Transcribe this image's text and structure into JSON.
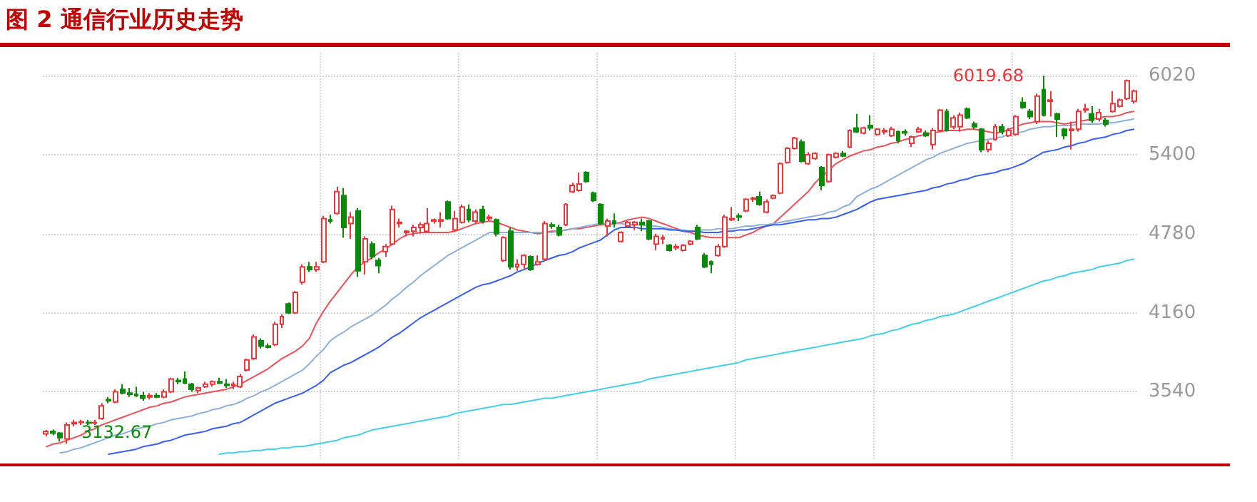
{
  "chart_data": {
    "type": "candlestick",
    "title": "图 2 通信行业历史走势",
    "categories": [
      null,
      null,
      null,
      null,
      null,
      null,
      null,
      null,
      null,
      null,
      null,
      null,
      null,
      null,
      null,
      null,
      null,
      null,
      null,
      null,
      null,
      null,
      null,
      null,
      null,
      null,
      null,
      null,
      null,
      null,
      null,
      null,
      null,
      null,
      null,
      null,
      null,
      null,
      null,
      null,
      null,
      null,
      null,
      null,
      null,
      null,
      null,
      null,
      null,
      null,
      null,
      null,
      null,
      null,
      null,
      null,
      null,
      null,
      null,
      null,
      null,
      null,
      null,
      null,
      null,
      null,
      null,
      null,
      null,
      null,
      null,
      null,
      null,
      null,
      null,
      null,
      null,
      null,
      null,
      null,
      null,
      null,
      null,
      null,
      null,
      null,
      null,
      null,
      null,
      null,
      null,
      null,
      null,
      null,
      null,
      null,
      null,
      null,
      null,
      null,
      null,
      null,
      null,
      null,
      null,
      null,
      null,
      null,
      null,
      null,
      null,
      null,
      null,
      null,
      null,
      null,
      null,
      null,
      null,
      null,
      null,
      null,
      null,
      null,
      null,
      null,
      null,
      null,
      null,
      null,
      null,
      null,
      null,
      null,
      null,
      null,
      null,
      null,
      null,
      null,
      null,
      null,
      null,
      null,
      null,
      null,
      null,
      null,
      null,
      null,
      null,
      null,
      null,
      null,
      null,
      null,
      null,
      null
    ],
    "ylim": [
      3000,
      6200
    ],
    "yticks": [
      3540,
      4160,
      4780,
      5400,
      6020
    ],
    "grid": true,
    "tick_labels": "y",
    "annotations": [
      "6019.68",
      "3132.67"
    ],
    "series": [
      {
        "type": "line",
        "color": "#e8525a",
        "values": [
          3110,
          3130,
          3140,
          3160,
          3180,
          3200,
          3230,
          3250,
          3280,
          3300,
          3320,
          3340,
          3360,
          3380,
          3400,
          3420,
          3430,
          3450,
          3460,
          3480,
          3500,
          3510,
          3520,
          3530,
          3540,
          3550,
          3560,
          3580,
          3600,
          3630,
          3660,
          3690,
          3720,
          3760,
          3800,
          3830,
          3860,
          3900,
          3960,
          4080,
          4170,
          4250,
          4320,
          4390,
          4460,
          4520,
          4560,
          4590,
          4630,
          4660,
          4700,
          4740,
          4770,
          4780,
          4790,
          4790,
          4790,
          4790,
          4790,
          4800,
          4820,
          4840,
          4860,
          4870,
          4880,
          4870,
          4850,
          4830,
          4810,
          4800,
          4790,
          4780,
          4790,
          4800,
          4800,
          4810,
          4820,
          4820,
          4830,
          4840,
          4850,
          4850,
          4860,
          4870,
          4890,
          4900,
          4910,
          4900,
          4880,
          4860,
          4840,
          4820,
          4800,
          4790,
          4770,
          4760,
          4750,
          4750,
          4750,
          4750,
          4750,
          4770,
          4790,
          4820,
          4840,
          4860,
          4910,
          4960,
          5010,
          5060,
          5110,
          5180,
          5230,
          5280,
          5330,
          5360,
          5390,
          5410,
          5430,
          5440,
          5460,
          5470,
          5490,
          5500,
          5520,
          5530,
          5550,
          5560,
          5570,
          5580,
          5590,
          5590,
          5590,
          5600,
          5600,
          5590,
          5580,
          5570,
          5580,
          5600,
          5620,
          5640,
          5650,
          5660,
          5660,
          5660,
          5650,
          5640,
          5650,
          5660,
          5670,
          5680,
          5690,
          5700,
          5700,
          5710,
          5730,
          5740
        ]
      },
      {
        "type": "line",
        "color": "#8fb0d6",
        "values": [
          null,
          null,
          3060,
          3070,
          3090,
          3100,
          3120,
          3140,
          3160,
          3180,
          3200,
          3210,
          3230,
          3250,
          3260,
          3270,
          3290,
          3300,
          3320,
          3330,
          3340,
          3350,
          3370,
          3380,
          3400,
          3410,
          3430,
          3440,
          3460,
          3490,
          3510,
          3540,
          3560,
          3590,
          3620,
          3650,
          3680,
          3710,
          3760,
          3820,
          3870,
          3940,
          3980,
          4010,
          4050,
          4080,
          4110,
          4140,
          4180,
          4220,
          4270,
          4310,
          4360,
          4400,
          4450,
          4490,
          4530,
          4570,
          4610,
          4640,
          4670,
          4700,
          4730,
          4760,
          4790,
          4790,
          4790,
          4790,
          4790,
          4790,
          4790,
          4790,
          4790,
          4790,
          4800,
          4810,
          4820,
          4830,
          4840,
          4850,
          4860,
          4860,
          4860,
          4860,
          4850,
          4850,
          4850,
          4840,
          4840,
          4830,
          4820,
          4810,
          4810,
          4800,
          4810,
          4810,
          4810,
          4820,
          4820,
          4820,
          4830,
          4840,
          4840,
          4850,
          4850,
          4860,
          4870,
          4880,
          4890,
          4900,
          4910,
          4920,
          4930,
          4950,
          4960,
          4990,
          5010,
          5070,
          5100,
          5130,
          5150,
          5180,
          5210,
          5240,
          5270,
          5300,
          5330,
          5360,
          5380,
          5410,
          5430,
          5450,
          5470,
          5490,
          5500,
          5510,
          5520,
          5530,
          5540,
          5560,
          5570,
          5580,
          5600,
          5610,
          5620,
          5620,
          5630,
          5630,
          5630,
          5640,
          5640,
          5640,
          5640,
          5650,
          5650,
          5660,
          5670,
          5680
        ]
      },
      {
        "type": "line",
        "color": "#3a5ef0",
        "values": [
          null,
          null,
          null,
          null,
          null,
          null,
          null,
          null,
          null,
          3050,
          3060,
          3070,
          3080,
          3090,
          3110,
          3120,
          3130,
          3150,
          3160,
          3180,
          3200,
          3210,
          3220,
          3230,
          3250,
          3260,
          3270,
          3290,
          3300,
          3330,
          3360,
          3390,
          3420,
          3450,
          3470,
          3490,
          3510,
          3530,
          3560,
          3590,
          3630,
          3690,
          3720,
          3750,
          3770,
          3800,
          3830,
          3860,
          3890,
          3930,
          3970,
          4000,
          4040,
          4080,
          4120,
          4150,
          4180,
          4210,
          4240,
          4270,
          4300,
          4330,
          4360,
          4380,
          4390,
          4410,
          4430,
          4450,
          4480,
          4500,
          4520,
          4550,
          4570,
          4590,
          4610,
          4620,
          4640,
          4670,
          4690,
          4710,
          4730,
          4770,
          4810,
          4830,
          4830,
          4830,
          4820,
          4820,
          4820,
          4820,
          4810,
          4810,
          4800,
          4800,
          4800,
          4790,
          4790,
          4790,
          4800,
          4800,
          4810,
          4810,
          4820,
          4830,
          4840,
          4850,
          4850,
          4860,
          4870,
          4880,
          4890,
          4890,
          4900,
          4900,
          4910,
          4930,
          4950,
          4970,
          5000,
          5030,
          5050,
          5060,
          5070,
          5080,
          5090,
          5100,
          5110,
          5120,
          5140,
          5150,
          5170,
          5180,
          5200,
          5210,
          5230,
          5240,
          5250,
          5260,
          5280,
          5290,
          5310,
          5330,
          5360,
          5390,
          5420,
          5430,
          5440,
          5460,
          5470,
          5490,
          5500,
          5520,
          5530,
          5540,
          5560,
          5570,
          5590,
          5600
        ]
      },
      {
        "type": "line",
        "color": "#45cfe6",
        "values": [
          null,
          null,
          null,
          null,
          null,
          null,
          null,
          null,
          null,
          null,
          null,
          null,
          null,
          null,
          null,
          null,
          null,
          null,
          null,
          null,
          null,
          null,
          null,
          null,
          null,
          3050,
          3060,
          3060,
          3070,
          3070,
          3080,
          3080,
          3090,
          3090,
          3100,
          3100,
          3110,
          3110,
          3120,
          3130,
          3140,
          3150,
          3160,
          3180,
          3190,
          3200,
          3220,
          3240,
          3250,
          3260,
          3270,
          3280,
          3290,
          3300,
          3310,
          3320,
          3330,
          3340,
          3350,
          3370,
          3380,
          3390,
          3400,
          3410,
          3420,
          3430,
          3440,
          3440,
          3450,
          3460,
          3470,
          3480,
          3490,
          3490,
          3500,
          3510,
          3520,
          3530,
          3540,
          3550,
          3560,
          3570,
          3580,
          3590,
          3600,
          3610,
          3620,
          3640,
          3650,
          3660,
          3670,
          3680,
          3690,
          3700,
          3710,
          3720,
          3730,
          3740,
          3750,
          3760,
          3770,
          3790,
          3800,
          3810,
          3820,
          3830,
          3840,
          3850,
          3860,
          3870,
          3880,
          3890,
          3900,
          3910,
          3920,
          3930,
          3940,
          3950,
          3960,
          3980,
          3990,
          4000,
          4020,
          4030,
          4050,
          4070,
          4080,
          4100,
          4110,
          4130,
          4140,
          4150,
          4170,
          4190,
          4210,
          4230,
          4250,
          4270,
          4290,
          4310,
          4330,
          4350,
          4370,
          4390,
          4410,
          4420,
          4440,
          4450,
          4470,
          4480,
          4490,
          4500,
          4520,
          4530,
          4540,
          4550,
          4570,
          4580
        ]
      },
      {
        "type": "candlestick",
        "colors": [
          "#e8383d",
          "#0a8a0a",
          "#0a8a0a",
          "#e8383d",
          "#e8383d",
          "#e8383d",
          "#0a8a0a",
          "#e8383d",
          "#e8383d",
          "#0a8a0a",
          "#e8383d",
          "#0a8a0a",
          "#0a8a0a",
          "#0a8a0a",
          "#0a8a0a",
          "#e8383d",
          "#0a8a0a",
          "#e8383d",
          "#e8383d",
          "#0a8a0a",
          "#0a8a0a",
          "#0a8a0a",
          "#e8383d",
          "#e8383d",
          "#e8383d",
          "#0a8a0a",
          "#0a8a0a",
          "#e8383d",
          "#e8383d",
          "#e8383d",
          "#e8383d",
          "#0a8a0a",
          "#0a8a0a",
          "#e8383d",
          "#e8383d",
          "#0a8a0a",
          "#e8383d",
          "#e8383d",
          "#0a8a0a",
          "#e8383d",
          "#e8383d",
          "#0a8a0a",
          "#e8383d",
          "#0a8a0a",
          "#e8383d",
          "#0a8a0a",
          "#e8383d",
          "#0a8a0a",
          "#0a8a0a",
          "#e8383d",
          "#e8383d",
          "#e8383d",
          "#e8383d",
          "#e8383d",
          "#e8383d",
          "#e8383d",
          "#e8383d",
          "#e8383d",
          "#0a8a0a",
          "#e8383d",
          "#e8383d",
          "#0a8a0a",
          "#e8383d",
          "#0a8a0a",
          "#e8383d",
          "#0a8a0a",
          "#e8383d",
          "#0a8a0a",
          "#e8383d",
          "#e8383d",
          "#0a8a0a",
          "#e8383d",
          "#e8383d",
          "#0a8a0a",
          "#0a8a0a",
          "#e8383d",
          "#e8383d",
          "#e8383d",
          "#0a8a0a",
          "#0a8a0a",
          "#0a8a0a",
          "#e8383d",
          "#0a8a0a",
          "#e8383d",
          "#e8383d",
          "#e8383d",
          "#0a8a0a",
          "#0a8a0a",
          "#e8383d",
          "#e8383d",
          "#0a8a0a",
          "#e8383d",
          "#e8383d",
          "#e8383d",
          "#0a8a0a",
          "#0a8a0a",
          "#0a8a0a",
          "#e8383d",
          "#e8383d",
          "#e8383d",
          "#0a8a0a",
          "#e8383d",
          "#e8383d",
          "#0a8a0a",
          "#e8383d",
          "#e8383d",
          "#e8383d",
          "#e8383d",
          "#e8383d",
          "#0a8a0a",
          "#e8383d",
          "#e8383d",
          "#0a8a0a",
          "#e8383d",
          "#e8383d",
          "#0a8a0a",
          "#e8383d",
          "#0a8a0a",
          "#e8383d",
          "#0a8a0a",
          "#e8383d",
          "#e8383d",
          "#e8383d",
          "#0a8a0a",
          "#0a8a0a",
          "#e8383d",
          "#e8383d",
          "#0a8a0a",
          "#e8383d",
          "#e8383d",
          "#0a8a0a",
          "#e8383d",
          "#e8383d",
          "#0a8a0a",
          "#0a8a0a",
          "#0a8a0a",
          "#e8383d",
          "#e8383d",
          "#0a8a0a",
          "#e8383d",
          "#e8383d",
          "#0a8a0a",
          "#0a8a0a",
          "#e8383d",
          "#0a8a0a",
          "#e8383d",
          "#0a8a0a",
          "#0a8a0a",
          "#e8383d",
          "#e8383d",
          "#e8383d",
          "#0a8a0a",
          "#e8383d",
          "#0a8a0a",
          "#e8383d",
          "#e8383d",
          "#e8383d",
          "#e8383d"
        ],
        "ohlc": [
          [
            3210,
            3240,
            3190,
            3230
          ],
          [
            3230,
            3245,
            3200,
            3215
          ],
          [
            3215,
            3225,
            3150,
            3180
          ],
          [
            3170,
            3300,
            3132.67,
            3280
          ],
          [
            3290,
            3320,
            3270,
            3300
          ],
          [
            3300,
            3320,
            3280,
            3305
          ],
          [
            3300,
            3320,
            3280,
            3295
          ],
          [
            3295,
            3320,
            3280,
            3300
          ],
          [
            3330,
            3450,
            3320,
            3430
          ],
          [
            3480,
            3500,
            3450,
            3470
          ],
          [
            3460,
            3560,
            3450,
            3540
          ],
          [
            3560,
            3600,
            3520,
            3530
          ],
          [
            3530,
            3570,
            3500,
            3520
          ],
          [
            3520,
            3580,
            3500,
            3510
          ],
          [
            3510,
            3540,
            3470,
            3490
          ],
          [
            3500,
            3530,
            3480,
            3510
          ],
          [
            3510,
            3530,
            3490,
            3500
          ],
          [
            3500,
            3560,
            3490,
            3540
          ],
          [
            3540,
            3650,
            3530,
            3640
          ],
          [
            3630,
            3650,
            3600,
            3620
          ],
          [
            3640,
            3700,
            3600,
            3610
          ],
          [
            3600,
            3610,
            3540,
            3560
          ],
          [
            3550,
            3580,
            3530,
            3570
          ],
          [
            3580,
            3620,
            3570,
            3600
          ],
          [
            3600,
            3630,
            3580,
            3620
          ],
          [
            3620,
            3650,
            3600,
            3610
          ],
          [
            3600,
            3640,
            3570,
            3590
          ],
          [
            3590,
            3620,
            3560,
            3600
          ],
          [
            3580,
            3680,
            3570,
            3660
          ],
          [
            3710,
            3800,
            3700,
            3790
          ],
          [
            3800,
            3990,
            3790,
            3970
          ],
          [
            3940,
            3960,
            3880,
            3900
          ],
          [
            3900,
            3920,
            3880,
            3890
          ],
          [
            3910,
            4090,
            3900,
            4070
          ],
          [
            4070,
            4150,
            4040,
            4130
          ],
          [
            4230,
            4240,
            4150,
            4160
          ],
          [
            4160,
            4330,
            4150,
            4320
          ],
          [
            4400,
            4540,
            4380,
            4520
          ],
          [
            4520,
            4560,
            4480,
            4500
          ],
          [
            4500,
            4560,
            4480,
            4520
          ],
          [
            4560,
            4920,
            4550,
            4900
          ],
          [
            4890,
            4930,
            4860,
            4880
          ],
          [
            4940,
            5150,
            4930,
            5110
          ],
          [
            5080,
            5140,
            4750,
            4830
          ],
          [
            4860,
            4950,
            4740,
            4910
          ],
          [
            4960,
            4980,
            4440,
            4490
          ],
          [
            4560,
            4760,
            4460,
            4740
          ],
          [
            4700,
            4720,
            4580,
            4600
          ],
          [
            4570,
            4590,
            4470,
            4530
          ],
          [
            4640,
            4700,
            4600,
            4680
          ],
          [
            4700,
            5000,
            4690,
            4970
          ],
          [
            4860,
            4900,
            4830,
            4870
          ],
          [
            4790,
            4810,
            4760,
            4800
          ],
          [
            4800,
            4850,
            4760,
            4830
          ],
          [
            4830,
            4870,
            4780,
            4850
          ],
          [
            4800,
            4980,
            4790,
            4860
          ],
          [
            4880,
            4900,
            4860,
            4890
          ],
          [
            4880,
            4950,
            4830,
            4890
          ],
          [
            5030,
            5040,
            4890,
            4900
          ],
          [
            4810,
            4960,
            4800,
            4900
          ],
          [
            4870,
            5010,
            4860,
            4990
          ],
          [
            4970,
            5010,
            4870,
            4890
          ],
          [
            4880,
            4970,
            4860,
            4950
          ],
          [
            4970,
            5000,
            4860,
            4880
          ],
          [
            4900,
            4930,
            4880,
            4910
          ],
          [
            4890,
            4900,
            4760,
            4780
          ],
          [
            4570,
            4760,
            4560,
            4750
          ],
          [
            4800,
            4830,
            4500,
            4520
          ],
          [
            4520,
            4580,
            4490,
            4540
          ],
          [
            4540,
            4620,
            4500,
            4610
          ],
          [
            4600,
            4610,
            4490,
            4500
          ],
          [
            4540,
            4610,
            4530,
            4560
          ],
          [
            4580,
            4880,
            4570,
            4860
          ],
          [
            4850,
            4870,
            4820,
            4840
          ],
          [
            4830,
            4850,
            4760,
            4770
          ],
          [
            4850,
            5020,
            4840,
            5010
          ],
          [
            5110,
            5180,
            5100,
            5160
          ],
          [
            5120,
            5260,
            5110,
            5170
          ],
          [
            5260,
            5270,
            5180,
            5190
          ],
          [
            5100,
            5110,
            5030,
            5040
          ],
          [
            5010,
            5020,
            4850,
            4860
          ],
          [
            4840,
            4900,
            4760,
            4880
          ],
          [
            4880,
            4940,
            4830,
            4860
          ],
          [
            4720,
            4800,
            4710,
            4790
          ],
          [
            4840,
            4880,
            4830,
            4870
          ],
          [
            4850,
            4880,
            4810,
            4870
          ],
          [
            4870,
            4900,
            4800,
            4850
          ],
          [
            4880,
            4890,
            4730,
            4740
          ],
          [
            4700,
            4780,
            4650,
            4760
          ],
          [
            4740,
            4770,
            4700,
            4750
          ],
          [
            4690,
            4700,
            4640,
            4650
          ],
          [
            4670,
            4700,
            4650,
            4680
          ],
          [
            4650,
            4700,
            4640,
            4690
          ],
          [
            4700,
            4730,
            4690,
            4720
          ],
          [
            4830,
            4850,
            4730,
            4740
          ],
          [
            4610,
            4630,
            4510,
            4520
          ],
          [
            4560,
            4570,
            4470,
            4540
          ],
          [
            4610,
            4700,
            4600,
            4680
          ],
          [
            4680,
            4930,
            4670,
            4910
          ],
          [
            4890,
            4990,
            4880,
            4900
          ],
          [
            4920,
            4940,
            4880,
            4910
          ],
          [
            4960,
            5060,
            4950,
            5050
          ],
          [
            5050,
            5070,
            5030,
            5060
          ],
          [
            5070,
            5110,
            5000,
            5010
          ],
          [
            4950,
            5050,
            4940,
            5030
          ],
          [
            5060,
            5090,
            5050,
            5080
          ],
          [
            5100,
            5340,
            5090,
            5330
          ],
          [
            5340,
            5460,
            5330,
            5450
          ],
          [
            5450,
            5540,
            5440,
            5530
          ],
          [
            5500,
            5520,
            5340,
            5350
          ],
          [
            5330,
            5420,
            5320,
            5400
          ],
          [
            5370,
            5420,
            5360,
            5410
          ],
          [
            5300,
            5310,
            5120,
            5160
          ],
          [
            5190,
            5410,
            5180,
            5400
          ],
          [
            5380,
            5420,
            5370,
            5410
          ],
          [
            5410,
            5430,
            5380,
            5390
          ],
          [
            5460,
            5600,
            5450,
            5590
          ],
          [
            5610,
            5720,
            5570,
            5580
          ],
          [
            5570,
            5620,
            5560,
            5610
          ],
          [
            5630,
            5710,
            5590,
            5610
          ],
          [
            5560,
            5610,
            5550,
            5600
          ],
          [
            5580,
            5610,
            5560,
            5590
          ],
          [
            5550,
            5620,
            5540,
            5600
          ],
          [
            5580,
            5590,
            5490,
            5510
          ],
          [
            5580,
            5600,
            5550,
            5570
          ],
          [
            5490,
            5550,
            5460,
            5540
          ],
          [
            5580,
            5620,
            5570,
            5600
          ],
          [
            5570,
            5590,
            5540,
            5550
          ],
          [
            5480,
            5610,
            5440,
            5590
          ],
          [
            5590,
            5760,
            5580,
            5750
          ],
          [
            5740,
            5760,
            5580,
            5590
          ],
          [
            5620,
            5710,
            5600,
            5690
          ],
          [
            5620,
            5730,
            5580,
            5710
          ],
          [
            5760,
            5770,
            5680,
            5690
          ],
          [
            5640,
            5660,
            5600,
            5620
          ],
          [
            5600,
            5610,
            5420,
            5440
          ],
          [
            5440,
            5510,
            5420,
            5490
          ],
          [
            5520,
            5640,
            5510,
            5620
          ],
          [
            5620,
            5640,
            5560,
            5580
          ],
          [
            5550,
            5610,
            5540,
            5590
          ],
          [
            5560,
            5710,
            5550,
            5700
          ],
          [
            5810,
            5850,
            5760,
            5770
          ],
          [
            5740,
            5760,
            5680,
            5700
          ],
          [
            5660,
            5880,
            5640,
            5860
          ],
          [
            5910,
            6019.68,
            5700,
            5710
          ],
          [
            5820,
            5900,
            5700,
            5830
          ],
          [
            5720,
            5730,
            5540,
            5680
          ],
          [
            5600,
            5610,
            5520,
            5550
          ],
          [
            5590,
            5660,
            5440,
            5600
          ],
          [
            5600,
            5760,
            5580,
            5740
          ],
          [
            5750,
            5800,
            5730,
            5760
          ],
          [
            5720,
            5780,
            5650,
            5670
          ],
          [
            5680,
            5760,
            5660,
            5730
          ],
          [
            5670,
            5690,
            5620,
            5640
          ],
          [
            5740,
            5900,
            5730,
            5800
          ],
          [
            5780,
            5840,
            5770,
            5830
          ],
          [
            5840,
            5990,
            5830,
            5980
          ],
          [
            5820,
            5910,
            5800,
            5900
          ]
        ]
      }
    ]
  }
}
